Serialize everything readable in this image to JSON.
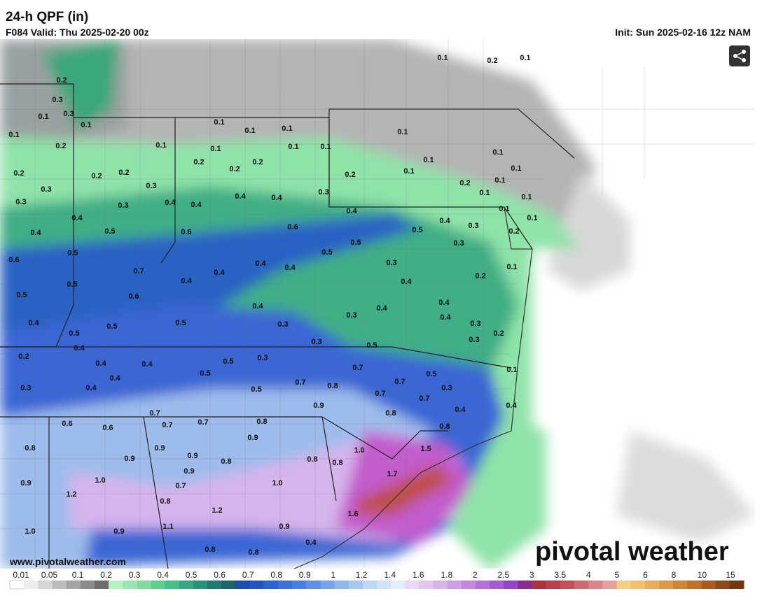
{
  "header": {
    "title": "24-h QPF (in)",
    "valid": "F084 Valid: Thu 2025-02-20 00z",
    "init": "Init: Sun 2025-02-16 12z NAM"
  },
  "map": {
    "labels": [
      "0.1",
      "0.2",
      "0.1",
      "0.2",
      "0.3",
      "0.1",
      "0.3",
      "0.1",
      "0.1",
      "0.2",
      "0.1",
      "0.1",
      "0.1",
      "0.1",
      "0.1",
      "0.1",
      "0.1",
      "0.1",
      "0.1",
      "0.2",
      "0.2",
      "0.1",
      "0.2",
      "0.2",
      "0.2",
      "0.2",
      "0.2",
      "0.1",
      "0.1",
      "0.1",
      "0.3",
      "0.3",
      "0.2",
      "0.1",
      "0.3",
      "0.3",
      "0.4",
      "0.3",
      "0.4",
      "0.4",
      "0.4",
      "0.1",
      "0.4",
      "0.1",
      "0.4",
      "0.4",
      "0.1",
      "0.4",
      "0.5",
      "0.6",
      "0.6",
      "0.5",
      "0.3",
      "0.2",
      "0.3",
      "0.5",
      "0.5",
      "0.5",
      "0.6",
      "0.4",
      "0.4",
      "0.3",
      "0.7",
      "0.4",
      "0.1",
      "0.2",
      "0.5",
      "0.4",
      "0.4",
      "0.5",
      "0.6",
      "0.4",
      "0.4",
      "0.4",
      "0.3",
      "0.4",
      "0.4",
      "0.5",
      "0.5",
      "0.3",
      "0.3",
      "0.5",
      "0.2",
      "0.3",
      "0.3",
      "0.5",
      "0.4",
      "0.2",
      "0.3",
      "0.5",
      "0.4",
      "0.4",
      "0.7",
      "0.1",
      "0.5",
      "0.5",
      "0.4",
      "0.7",
      "0.8",
      "0.7",
      "0.3",
      "0.4",
      "0.5",
      "0.3",
      "0.7",
      "0.7",
      "0.4",
      "0.9",
      "0.4",
      "0.7",
      "0.8",
      "0.6",
      "0.6",
      "0.7",
      "0.7",
      "0.8",
      "0.8",
      "0.8",
      "0.9",
      "0.9",
      "1.0",
      "1.5",
      "0.9",
      "0.9",
      "0.8",
      "0.8",
      "0.8",
      "0.9",
      "1.7",
      "1.0",
      "0.9",
      "0.7",
      "1.0",
      "1.2",
      "0.8",
      "1.2",
      "1.6",
      "1.1",
      "0.9",
      "1.0",
      "0.9",
      "0.4",
      "0.8",
      "0.8"
    ],
    "website": "www.pivotalweather.com",
    "brand": "pivotal weather"
  },
  "colorbar": {
    "labels": [
      "0.01",
      "0.05",
      "0.1",
      "0.2",
      "0.3",
      "0.4",
      "0.5",
      "0.6",
      "0.7",
      "0.8",
      "0.9",
      "1",
      "1.2",
      "1.4",
      "1.6",
      "1.8",
      "2",
      "2.5",
      "3",
      "3.5",
      "4",
      "5",
      "6",
      "8",
      "10",
      "15"
    ]
  }
}
